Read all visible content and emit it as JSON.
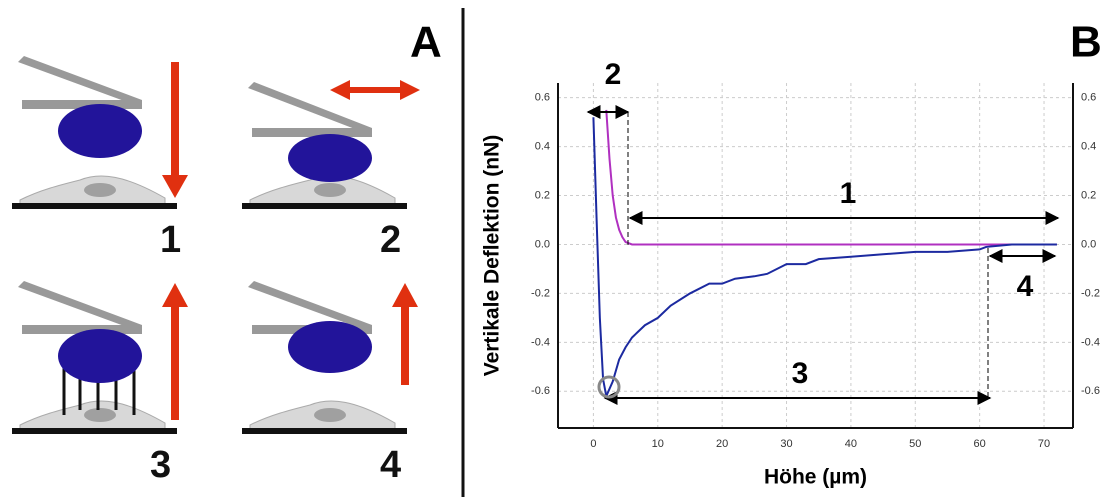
{
  "panel_a": {
    "label": "A",
    "steps": [
      "1",
      "2",
      "3",
      "4"
    ]
  },
  "panel_b_label": "B",
  "chart_data": {
    "type": "line",
    "x_label": "Höhe (µm)",
    "y_label": "Vertikale Deflektion (nN)",
    "xlim": [
      -5.5,
      74.5
    ],
    "xticks": [
      0,
      10,
      20,
      30,
      40,
      50,
      60,
      70
    ],
    "ylim": [
      -0.75,
      0.66
    ],
    "yticks": [
      -0.6,
      -0.4,
      -0.2,
      {
        "value": 0,
        "label": "0.0"
      },
      0.2,
      0.4,
      0.6
    ],
    "grid": true,
    "right_axis_ticks": true,
    "series": [
      {
        "color": "#b030c0",
        "x": [
          2,
          2.5,
          3,
          3.5,
          4,
          4.5,
          5,
          6,
          8,
          15,
          25,
          35,
          45,
          55,
          65,
          72
        ],
        "values": [
          0.55,
          0.35,
          0.2,
          0.11,
          0.06,
          0.03,
          0.01,
          0,
          0,
          0,
          0,
          0,
          0,
          0,
          0,
          0
        ]
      },
      {
        "color": "#1c2aa0",
        "x": [
          0,
          0.5,
          1,
          1.5,
          2,
          3,
          4,
          5,
          6,
          8,
          10,
          12,
          15,
          18,
          20,
          22,
          25,
          27,
          30,
          33,
          35,
          40,
          45,
          50,
          55,
          60,
          61,
          65,
          72
        ],
        "values": [
          0.52,
          0.1,
          -0.3,
          -0.55,
          -0.62,
          -0.56,
          -0.47,
          -0.42,
          -0.38,
          -0.33,
          -0.3,
          -0.25,
          -0.2,
          -0.16,
          -0.16,
          -0.14,
          -0.13,
          -0.12,
          -0.08,
          -0.08,
          -0.06,
          -0.05,
          -0.04,
          -0.03,
          -0.03,
          -0.02,
          -0.01,
          0,
          0
        ]
      }
    ],
    "annotations": [
      "2",
      "1",
      "4",
      "3"
    ]
  }
}
